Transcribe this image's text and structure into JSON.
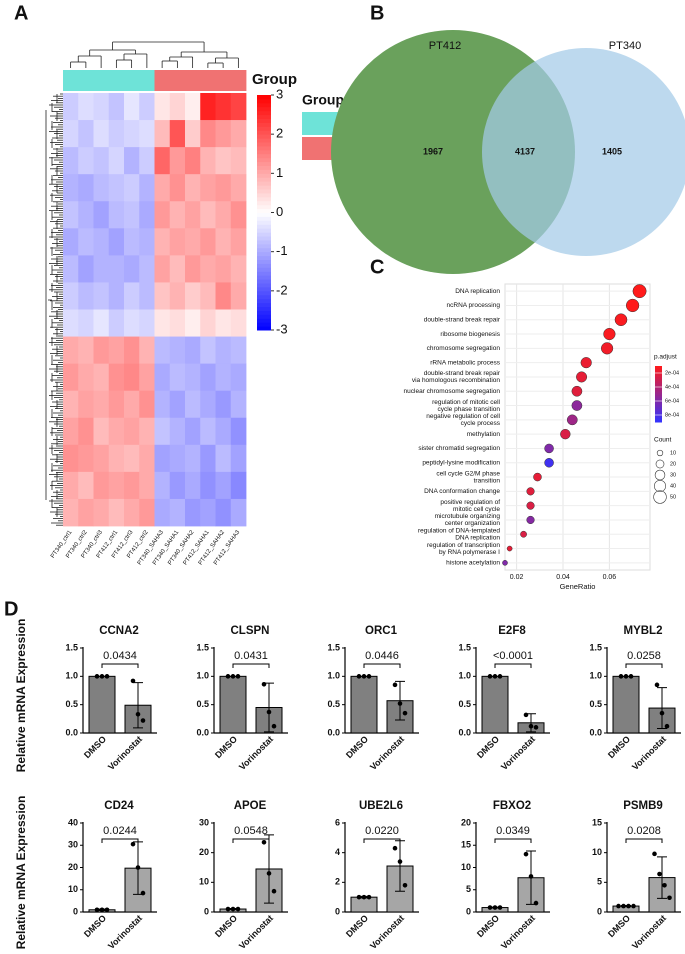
{
  "panels": [
    "A",
    "B",
    "C",
    "D"
  ],
  "chart_data": [
    {
      "type": "heatmap",
      "x": [
        "PT340_ctrl1",
        "PT340_ctrl2",
        "PT340_ctrl3",
        "PT412_ctrl1",
        "PT412_ctrl3",
        "PT412_ctrl2",
        "PT340_SAHA3",
        "PT340_SAHA1",
        "PT340_SAHA2",
        "PT412_SAHA1",
        "PT412_SAHA2",
        "PT412_SAHA3"
      ],
      "values": [
        [
          -0.6,
          -0.4,
          -0.5,
          -0.7,
          -0.3,
          -0.6,
          0.3,
          0.5,
          0.2,
          2.6,
          2.4,
          2.2
        ],
        [
          -0.5,
          -0.7,
          -0.4,
          -0.6,
          -0.5,
          -0.4,
          0.8,
          2.0,
          0.6,
          1.4,
          1.2,
          1.0
        ],
        [
          -0.8,
          -0.6,
          -0.7,
          -0.5,
          -0.9,
          -0.6,
          1.8,
          1.2,
          1.5,
          0.9,
          0.7,
          0.8
        ],
        [
          -0.9,
          -1.0,
          -0.8,
          -0.7,
          -0.6,
          -0.9,
          1.0,
          1.3,
          0.9,
          1.1,
          1.2,
          1.0
        ],
        [
          -0.7,
          -0.9,
          -1.1,
          -0.8,
          -0.7,
          -1.0,
          1.2,
          0.9,
          1.1,
          0.8,
          1.0,
          1.3
        ],
        [
          -1.0,
          -0.8,
          -0.9,
          -1.1,
          -0.8,
          -0.9,
          0.9,
          1.1,
          1.0,
          1.2,
          0.9,
          1.1
        ],
        [
          -0.8,
          -1.1,
          -0.9,
          -0.9,
          -1.0,
          -0.8,
          1.1,
          0.8,
          1.2,
          1.0,
          1.1,
          0.9
        ],
        [
          -0.6,
          -0.8,
          -0.7,
          -0.9,
          -0.6,
          -0.8,
          0.7,
          0.9,
          0.6,
          0.8,
          1.4,
          1.0
        ],
        [
          -0.4,
          -0.5,
          -0.3,
          -0.6,
          -0.4,
          -0.5,
          0.3,
          0.4,
          0.2,
          0.5,
          0.3,
          0.4
        ],
        [
          1.0,
          0.9,
          1.2,
          1.1,
          1.3,
          0.9,
          -0.8,
          -0.9,
          -1.0,
          -0.7,
          -0.9,
          -0.8
        ],
        [
          1.2,
          1.0,
          0.9,
          1.3,
          1.4,
          1.1,
          -1.0,
          -0.8,
          -0.9,
          -1.1,
          -0.9,
          -1.0
        ],
        [
          0.9,
          1.1,
          1.0,
          1.2,
          1.0,
          1.3,
          -0.9,
          -1.1,
          -0.8,
          -1.0,
          -1.2,
          -0.9
        ],
        [
          1.1,
          1.3,
          0.8,
          1.0,
          1.1,
          0.9,
          -0.7,
          -0.9,
          -1.1,
          -0.8,
          -1.0,
          -1.3
        ],
        [
          1.3,
          1.2,
          1.1,
          0.9,
          0.8,
          1.0,
          -1.1,
          -1.0,
          -0.9,
          -1.2,
          -0.8,
          -1.1
        ],
        [
          1.0,
          0.8,
          1.2,
          1.1,
          1.2,
          1.0,
          -0.9,
          -1.2,
          -1.0,
          -1.3,
          -1.1,
          -1.4
        ],
        [
          0.9,
          1.1,
          1.0,
          0.8,
          1.0,
          1.2,
          -1.0,
          -0.9,
          -1.2,
          -1.1,
          -1.3,
          -1.0
        ]
      ],
      "zlim": [
        -3,
        3
      ],
      "zticks": [
        3,
        2,
        1,
        0,
        -1,
        -2,
        -3
      ],
      "colors": {
        "low": "#0000ff",
        "mid": "#ffffff",
        "high": "#ff0000"
      },
      "annotation": {
        "title": "Group",
        "levels": [
          {
            "name": "ctrl",
            "color": "#6ee3d8"
          },
          {
            "name": "SAHA",
            "color": "#f07272"
          }
        ],
        "columns": [
          "ctrl",
          "ctrl",
          "ctrl",
          "ctrl",
          "ctrl",
          "ctrl",
          "SAHA",
          "SAHA",
          "SAHA",
          "SAHA",
          "SAHA",
          "SAHA"
        ]
      }
    },
    {
      "type": "venn",
      "sets": [
        {
          "name": "PT412",
          "color": "#6aa15c"
        },
        {
          "name": "PT340",
          "color": "#a3cbe7"
        }
      ],
      "values": [
        1967,
        4137,
        1405
      ]
    },
    {
      "type": "dot",
      "categories": [
        [
          "DNA replication"
        ],
        [
          "ncRNA processing"
        ],
        [
          "double-strand break repair"
        ],
        [
          "ribosome biogenesis"
        ],
        [
          "chromosome segregation"
        ],
        [
          "rRNA metabolic process"
        ],
        [
          "double-strand break repair",
          "via homologous recombination"
        ],
        [
          "nuclear chromosome segregation"
        ],
        [
          "regulation of mitotic cell",
          "cycle phase transition"
        ],
        [
          "negative regulation of cell",
          "cycle process"
        ],
        [
          "methylation"
        ],
        [
          "sister chromatid segregation"
        ],
        [
          "peptidyl-lysine modification"
        ],
        [
          "cell cycle G2/M phase",
          "transition"
        ],
        [
          "DNA conformation change"
        ],
        [
          "positive regulation of",
          "mitotic cell cycle"
        ],
        [
          "microtubule organizing",
          "center organization"
        ],
        [
          "regulation of DNA-templated",
          "DNA replication"
        ],
        [
          "regulation of transcription",
          "by RNA polymerase I"
        ],
        [
          "histone acetylation"
        ]
      ],
      "values": [
        0.073,
        0.07,
        0.065,
        0.06,
        0.059,
        0.05,
        0.048,
        0.046,
        0.046,
        0.044,
        0.041,
        0.034,
        0.034,
        0.029,
        0.026,
        0.026,
        0.026,
        0.023,
        0.017,
        0.015
      ],
      "padj": [
        0.0001,
        0.0001,
        0.00012,
        0.00012,
        0.00015,
        0.00018,
        0.0002,
        0.00022,
        0.00055,
        0.00048,
        0.00025,
        0.0006,
        0.00085,
        0.0002,
        0.00022,
        0.00025,
        0.00058,
        0.00025,
        0.0002,
        0.0006
      ],
      "count": [
        55,
        50,
        45,
        42,
        42,
        35,
        34,
        32,
        32,
        32,
        30,
        25,
        25,
        20,
        18,
        18,
        18,
        12,
        8,
        8
      ],
      "xlim": [
        0.015,
        0.0775
      ],
      "xticks": [
        0.02,
        0.04,
        0.06
      ],
      "xlabel": "GeneRatio",
      "grid": true,
      "color_title": "p.adjust",
      "clim": [
        0.0001,
        0.0009
      ],
      "colors": {
        "low": "#ff1a1a",
        "high": "#3333ff"
      },
      "cticks": [
        {
          "value": 0.0002,
          "label": "2e-04"
        },
        {
          "value": 0.0004,
          "label": "4e-04"
        },
        {
          "value": 0.0006,
          "label": "6e-04"
        },
        {
          "value": 0.0008,
          "label": "8e-04"
        }
      ],
      "size_title": "Count",
      "size_ticks": [
        10,
        20,
        30,
        40,
        50
      ]
    },
    {
      "type": "bar",
      "title": "CCNA2",
      "ylabel": "Relative mRNA Expression",
      "categories": [
        "DMSO",
        "Vorinostat"
      ],
      "values": [
        1.0,
        0.49
      ],
      "errors": [
        0.0,
        0.4
      ],
      "points": [
        [
          1,
          1,
          1
        ],
        [
          0.92,
          0.33,
          0.22
        ]
      ],
      "color": "#808080",
      "ylim": [
        0,
        1.5
      ],
      "yticks": [
        {
          "value": 0,
          "label": "0.0"
        },
        0.5,
        {
          "value": 1,
          "label": "1.0"
        },
        1.5
      ],
      "annotation": "0.0434"
    },
    {
      "type": "bar",
      "title": "CLSPN",
      "categories": [
        "DMSO",
        "Vorinostat"
      ],
      "values": [
        1.0,
        0.45
      ],
      "errors": [
        0.0,
        0.43
      ],
      "points": [
        [
          1,
          1,
          1
        ],
        [
          0.86,
          0.37,
          0.12
        ]
      ],
      "color": "#808080",
      "ylim": [
        0,
        1.5
      ],
      "yticks": [
        {
          "value": 0,
          "label": "0.0"
        },
        0.5,
        {
          "value": 1,
          "label": "1.0"
        },
        1.5
      ],
      "annotation": "0.0431"
    },
    {
      "type": "bar",
      "title": "ORC1",
      "categories": [
        "DMSO",
        "Vorinostat"
      ],
      "values": [
        1.0,
        0.57
      ],
      "errors": [
        0.0,
        0.34
      ],
      "points": [
        [
          1,
          1,
          1
        ],
        [
          0.85,
          0.52,
          0.35
        ]
      ],
      "color": "#808080",
      "ylim": [
        0,
        1.5
      ],
      "yticks": [
        {
          "value": 0,
          "label": "0.0"
        },
        0.5,
        {
          "value": 1,
          "label": "1.0"
        },
        1.5
      ],
      "annotation": "0.0446"
    },
    {
      "type": "bar",
      "title": "E2F8",
      "categories": [
        "DMSO",
        "Vorinostat"
      ],
      "values": [
        1.0,
        0.18
      ],
      "errors": [
        0.0,
        0.16
      ],
      "points": [
        [
          1,
          1,
          1
        ],
        [
          0.32,
          0.12,
          0.1
        ]
      ],
      "color": "#808080",
      "ylim": [
        0,
        1.5
      ],
      "yticks": [
        {
          "value": 0,
          "label": "0.0"
        },
        0.5,
        {
          "value": 1,
          "label": "1.0"
        },
        1.5
      ],
      "annotation": "<0.0001"
    },
    {
      "type": "bar",
      "title": "MYBL2",
      "categories": [
        "DMSO",
        "Vorinostat"
      ],
      "values": [
        1.0,
        0.44
      ],
      "errors": [
        0.0,
        0.36
      ],
      "points": [
        [
          1,
          1,
          1
        ],
        [
          0.85,
          0.35,
          0.12
        ]
      ],
      "color": "#808080",
      "ylim": [
        0,
        1.5
      ],
      "yticks": [
        {
          "value": 0,
          "label": "0.0"
        },
        0.5,
        {
          "value": 1,
          "label": "1.0"
        },
        1.5
      ],
      "annotation": "0.0258"
    },
    {
      "type": "bar",
      "title": "CD24",
      "ylabel": "Relative mRNA Expression",
      "categories": [
        "DMSO",
        "Vorinostat"
      ],
      "values": [
        1.0,
        19.7
      ],
      "errors": [
        0.3,
        11.8
      ],
      "points": [
        [
          1,
          1,
          1
        ],
        [
          30.5,
          20,
          8.5
        ]
      ],
      "color": "#a6a6a6",
      "ylim": [
        0,
        40
      ],
      "yticks": [
        0,
        10,
        20,
        30,
        40
      ],
      "annotation": "0.0244"
    },
    {
      "type": "bar",
      "title": "APOE",
      "categories": [
        "DMSO",
        "Vorinostat"
      ],
      "values": [
        1.0,
        14.5
      ],
      "errors": [
        0.2,
        11.5
      ],
      "points": [
        [
          1,
          1,
          1
        ],
        [
          23.5,
          13,
          7
        ]
      ],
      "color": "#a6a6a6",
      "ylim": [
        0,
        30
      ],
      "yticks": [
        0,
        10,
        20,
        30
      ],
      "annotation": "0.0548"
    },
    {
      "type": "bar",
      "title": "UBE2L6",
      "categories": [
        "DMSO",
        "Vorinostat"
      ],
      "values": [
        1.0,
        3.1
      ],
      "errors": [
        0.05,
        1.7
      ],
      "points": [
        [
          1,
          1,
          1
        ],
        [
          4.3,
          3.4,
          1.8
        ]
      ],
      "color": "#a6a6a6",
      "ylim": [
        0,
        6
      ],
      "yticks": [
        0,
        2,
        4,
        6
      ],
      "annotation": "0.0220"
    },
    {
      "type": "bar",
      "title": "FBXO2",
      "categories": [
        "DMSO",
        "Vorinostat"
      ],
      "values": [
        1.0,
        7.7
      ],
      "errors": [
        0.1,
        6.0
      ],
      "points": [
        [
          1,
          1,
          1
        ],
        [
          13,
          8,
          2
        ]
      ],
      "color": "#a6a6a6",
      "ylim": [
        0,
        20
      ],
      "yticks": [
        0,
        5,
        10,
        15,
        20
      ],
      "annotation": "0.0349"
    },
    {
      "type": "bar",
      "title": "PSMB9",
      "categories": [
        "DMSO",
        "Vorinostat"
      ],
      "values": [
        1.0,
        5.8
      ],
      "errors": [
        0.1,
        3.5
      ],
      "points": [
        [
          1,
          1,
          1,
          1
        ],
        [
          9.8,
          6.4,
          4.5,
          2.4
        ]
      ],
      "color": "#a6a6a6",
      "ylim": [
        0,
        15
      ],
      "yticks": [
        0,
        5,
        10,
        15
      ],
      "annotation": "0.0208"
    }
  ]
}
